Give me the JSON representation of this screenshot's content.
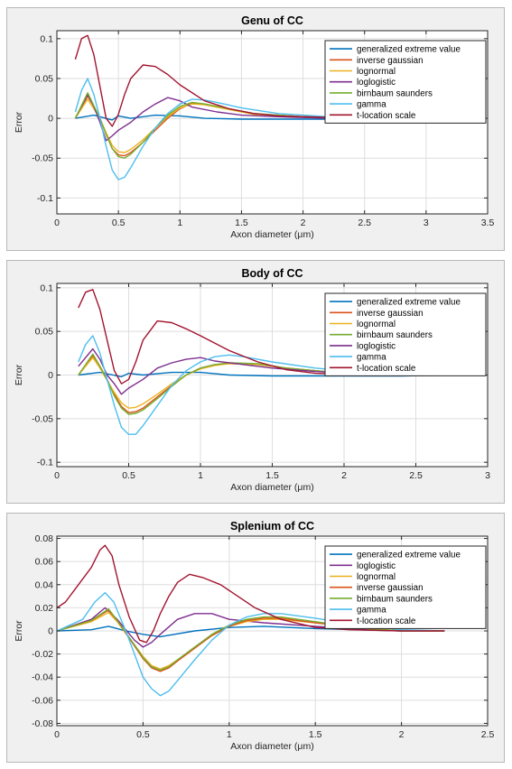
{
  "colors": {
    "generalized extreme value": "#0072BD",
    "inverse gaussian": "#D95319",
    "lognormal": "#EDB120",
    "loglogistic": "#7E2F8E",
    "birnbaum saunders": "#77AC30",
    "gamma": "#4DBEEE",
    "t-location scale": "#A2142F"
  },
  "chart_data": [
    {
      "type": "line",
      "title": "Genu of CC",
      "xlabel": "Axon diameter (μm)",
      "ylabel": "Error",
      "xlim": [
        0,
        3.5
      ],
      "ylim": [
        -0.12,
        0.11
      ],
      "xticks": [
        0,
        0.5,
        1,
        1.5,
        2,
        2.5,
        3,
        3.5
      ],
      "xtick_labels": [
        "0",
        "0.5",
        "1",
        "1.5",
        "2",
        "2.5",
        "3",
        "3.5"
      ],
      "yticks": [
        -0.1,
        -0.05,
        0,
        0.05,
        0.1
      ],
      "ytick_labels": [
        "-0.1",
        "-0.05",
        "0",
        "0.05",
        "0.1"
      ],
      "grid": true,
      "legend_position": "top-right",
      "series": [
        {
          "name": "generalized extreme value",
          "x": [
            0.15,
            0.3,
            0.45,
            0.5,
            0.6,
            0.8,
            1.0,
            1.2,
            1.5,
            2.0,
            2.5,
            3.1
          ],
          "y": [
            0.0,
            0.004,
            -0.002,
            0.003,
            0.0,
            0.004,
            0.003,
            0.0,
            -0.001,
            -0.001,
            -0.001,
            0.0
          ]
        },
        {
          "name": "inverse gaussian",
          "x": [
            0.15,
            0.25,
            0.3,
            0.35,
            0.4,
            0.45,
            0.5,
            0.55,
            0.6,
            0.7,
            0.8,
            0.9,
            1.0,
            1.1,
            1.2,
            1.4,
            1.6,
            2.0,
            2.5,
            3.1
          ],
          "y": [
            0.0,
            0.028,
            0.015,
            0.0,
            -0.02,
            -0.038,
            -0.046,
            -0.047,
            -0.043,
            -0.03,
            -0.015,
            0.0,
            0.012,
            0.019,
            0.018,
            0.012,
            0.006,
            0.002,
            0.0,
            0.0
          ]
        },
        {
          "name": "lognormal",
          "x": [
            0.15,
            0.25,
            0.3,
            0.35,
            0.4,
            0.45,
            0.5,
            0.55,
            0.6,
            0.7,
            0.8,
            0.9,
            1.0,
            1.1,
            1.2,
            1.4,
            1.6,
            2.0,
            2.5,
            3.1
          ],
          "y": [
            0.0,
            0.024,
            0.012,
            0.0,
            -0.018,
            -0.034,
            -0.042,
            -0.043,
            -0.039,
            -0.027,
            -0.012,
            0.002,
            0.013,
            0.018,
            0.017,
            0.011,
            0.005,
            0.002,
            0.0,
            0.0
          ]
        },
        {
          "name": "loglogistic",
          "x": [
            0.15,
            0.25,
            0.3,
            0.35,
            0.4,
            0.45,
            0.5,
            0.6,
            0.7,
            0.8,
            0.9,
            1.0,
            1.1,
            1.3,
            1.5,
            1.8,
            2.2,
            2.6,
            3.1
          ],
          "y": [
            0.0,
            0.03,
            0.015,
            -0.005,
            -0.028,
            -0.022,
            -0.015,
            -0.005,
            0.008,
            0.018,
            0.026,
            0.022,
            0.014,
            0.008,
            0.004,
            0.002,
            0.0,
            0.0,
            0.0
          ]
        },
        {
          "name": "birnbaum saunders",
          "x": [
            0.15,
            0.25,
            0.3,
            0.35,
            0.4,
            0.45,
            0.5,
            0.55,
            0.6,
            0.7,
            0.8,
            0.9,
            1.0,
            1.1,
            1.2,
            1.4,
            1.6,
            2.0,
            2.5,
            3.1
          ],
          "y": [
            0.0,
            0.032,
            0.016,
            0.0,
            -0.02,
            -0.038,
            -0.048,
            -0.05,
            -0.045,
            -0.03,
            -0.012,
            0.004,
            0.015,
            0.02,
            0.018,
            0.012,
            0.006,
            0.002,
            0.0,
            0.0
          ]
        },
        {
          "name": "gamma",
          "x": [
            0.15,
            0.2,
            0.25,
            0.3,
            0.35,
            0.4,
            0.45,
            0.5,
            0.55,
            0.6,
            0.7,
            0.8,
            0.9,
            1.0,
            1.1,
            1.2,
            1.3,
            1.5,
            1.8,
            2.2,
            2.6,
            3.1
          ],
          "y": [
            0.008,
            0.035,
            0.05,
            0.03,
            0.0,
            -0.035,
            -0.065,
            -0.077,
            -0.074,
            -0.062,
            -0.035,
            -0.012,
            0.006,
            0.018,
            0.024,
            0.023,
            0.02,
            0.013,
            0.006,
            0.002,
            0.0,
            0.0
          ]
        },
        {
          "name": "t-location scale",
          "x": [
            0.15,
            0.2,
            0.25,
            0.3,
            0.35,
            0.4,
            0.45,
            0.5,
            0.55,
            0.6,
            0.7,
            0.8,
            0.9,
            1.0,
            1.2,
            1.4,
            1.6,
            1.8,
            2.0,
            2.5,
            3.1
          ],
          "y": [
            0.074,
            0.1,
            0.104,
            0.08,
            0.04,
            0.0,
            -0.01,
            0.005,
            0.03,
            0.05,
            0.067,
            0.065,
            0.055,
            0.042,
            0.022,
            0.012,
            0.006,
            0.003,
            0.002,
            0.0,
            0.0
          ]
        }
      ]
    },
    {
      "type": "line",
      "title": "Body of CC",
      "xlabel": "Axon diameter (μm)",
      "ylabel": "Error",
      "xlim": [
        0,
        3
      ],
      "ylim": [
        -0.105,
        0.105
      ],
      "xticks": [
        0,
        0.5,
        1,
        1.5,
        2,
        2.5,
        3
      ],
      "xtick_labels": [
        "0",
        "0.5",
        "1",
        "1.5",
        "2",
        "2.5",
        "3"
      ],
      "yticks": [
        -0.1,
        -0.05,
        0,
        0.05,
        0.1
      ],
      "ytick_labels": [
        "-0.1",
        "-0.05",
        "0",
        "0.05",
        "0.1"
      ],
      "grid": true,
      "legend_position": "top-right",
      "series": [
        {
          "name": "generalized extreme value",
          "x": [
            0.15,
            0.3,
            0.45,
            0.5,
            0.6,
            0.8,
            1.0,
            1.2,
            1.5,
            2.0,
            2.4,
            2.75
          ],
          "y": [
            0.0,
            0.003,
            -0.002,
            0.002,
            0.0,
            0.003,
            0.003,
            0.0,
            -0.001,
            -0.001,
            -0.001,
            0.0
          ]
        },
        {
          "name": "inverse gaussian",
          "x": [
            0.15,
            0.25,
            0.3,
            0.35,
            0.4,
            0.45,
            0.5,
            0.55,
            0.6,
            0.7,
            0.8,
            0.9,
            1.0,
            1.1,
            1.2,
            1.4,
            1.6,
            2.0,
            2.4,
            2.75
          ],
          "y": [
            0.0,
            0.022,
            0.01,
            -0.005,
            -0.022,
            -0.036,
            -0.043,
            -0.042,
            -0.038,
            -0.025,
            -0.012,
            0.0,
            0.008,
            0.012,
            0.013,
            0.012,
            0.008,
            0.002,
            0.0,
            0.0
          ]
        },
        {
          "name": "lognormal",
          "x": [
            0.15,
            0.25,
            0.3,
            0.35,
            0.4,
            0.45,
            0.5,
            0.55,
            0.6,
            0.7,
            0.8,
            0.9,
            1.0,
            1.1,
            1.2,
            1.4,
            1.6,
            2.0,
            2.4,
            2.75
          ],
          "y": [
            0.0,
            0.02,
            0.008,
            -0.006,
            -0.02,
            -0.032,
            -0.038,
            -0.037,
            -0.033,
            -0.022,
            -0.01,
            0.0,
            0.007,
            0.011,
            0.013,
            0.012,
            0.008,
            0.002,
            0.0,
            0.0
          ]
        },
        {
          "name": "birnbaum saunders",
          "x": [
            0.15,
            0.25,
            0.3,
            0.35,
            0.4,
            0.45,
            0.5,
            0.55,
            0.6,
            0.7,
            0.8,
            0.9,
            1.0,
            1.1,
            1.2,
            1.4,
            1.6,
            2.0,
            2.4,
            2.75
          ],
          "y": [
            0.0,
            0.024,
            0.01,
            -0.006,
            -0.024,
            -0.038,
            -0.045,
            -0.044,
            -0.04,
            -0.027,
            -0.013,
            0.0,
            0.008,
            0.012,
            0.014,
            0.013,
            0.008,
            0.002,
            0.0,
            0.0
          ]
        },
        {
          "name": "loglogistic",
          "x": [
            0.15,
            0.25,
            0.3,
            0.35,
            0.4,
            0.45,
            0.5,
            0.6,
            0.7,
            0.8,
            0.9,
            1.0,
            1.1,
            1.3,
            1.5,
            1.8,
            2.2,
            2.5,
            2.75
          ],
          "y": [
            0.01,
            0.03,
            0.018,
            0.0,
            -0.01,
            -0.022,
            -0.015,
            -0.005,
            0.008,
            0.014,
            0.018,
            0.02,
            0.016,
            0.012,
            0.008,
            0.004,
            0.001,
            0.0,
            0.0
          ]
        },
        {
          "name": "gamma",
          "x": [
            0.15,
            0.2,
            0.25,
            0.3,
            0.35,
            0.4,
            0.45,
            0.5,
            0.55,
            0.6,
            0.7,
            0.8,
            0.9,
            1.0,
            1.1,
            1.2,
            1.3,
            1.5,
            1.8,
            2.2,
            2.5,
            2.75
          ],
          "y": [
            0.015,
            0.035,
            0.045,
            0.025,
            -0.005,
            -0.035,
            -0.06,
            -0.068,
            -0.068,
            -0.058,
            -0.035,
            -0.012,
            0.005,
            0.015,
            0.021,
            0.023,
            0.021,
            0.015,
            0.008,
            0.002,
            0.0,
            0.0
          ]
        },
        {
          "name": "t-location scale",
          "x": [
            0.15,
            0.2,
            0.25,
            0.3,
            0.35,
            0.4,
            0.45,
            0.5,
            0.55,
            0.6,
            0.7,
            0.8,
            0.9,
            1.0,
            1.2,
            1.4,
            1.6,
            1.8,
            2.0,
            2.4,
            2.75
          ],
          "y": [
            0.077,
            0.095,
            0.098,
            0.075,
            0.04,
            0.005,
            -0.01,
            -0.005,
            0.015,
            0.04,
            0.062,
            0.06,
            0.053,
            0.045,
            0.028,
            0.015,
            0.006,
            0.002,
            0.001,
            0.0,
            0.0
          ]
        }
      ]
    },
    {
      "type": "line",
      "title": "Splenium of CC",
      "xlabel": "Axon diameter (μm)",
      "ylabel": "Error",
      "xlim": [
        0,
        2.5
      ],
      "ylim": [
        -0.082,
        0.082
      ],
      "xticks": [
        0,
        0.5,
        1,
        1.5,
        2,
        2.5
      ],
      "xtick_labels": [
        "0",
        "0.5",
        "1",
        "1.5",
        "2",
        "2.5"
      ],
      "yticks": [
        -0.08,
        -0.06,
        -0.04,
        -0.02,
        0,
        0.02,
        0.04,
        0.06,
        0.08
      ],
      "ytick_labels": [
        "-0.08",
        "-0.06",
        "-0.04",
        "-0.02",
        "0",
        "0.02",
        "0.04",
        "0.06",
        "0.08"
      ],
      "grid": true,
      "legend_position": "top-right",
      "series": [
        {
          "name": "generalized extreme value",
          "x": [
            0,
            0.2,
            0.3,
            0.4,
            0.5,
            0.6,
            0.8,
            1.0,
            1.2,
            1.5,
            2.0,
            2.25
          ],
          "y": [
            0.0,
            0.001,
            0.004,
            0.0,
            -0.003,
            -0.005,
            0.0,
            0.003,
            0.004,
            0.002,
            0.0,
            0.0
          ]
        },
        {
          "name": "loglogistic",
          "x": [
            0,
            0.2,
            0.28,
            0.35,
            0.45,
            0.5,
            0.55,
            0.6,
            0.7,
            0.8,
            0.9,
            1.0,
            1.2,
            1.5,
            1.8,
            2.0,
            2.25
          ],
          "y": [
            0.0,
            0.01,
            0.02,
            0.01,
            -0.008,
            -0.014,
            -0.01,
            -0.003,
            0.01,
            0.015,
            0.015,
            0.01,
            0.007,
            0.004,
            0.001,
            0.0,
            0.0
          ]
        },
        {
          "name": "lognormal",
          "x": [
            0,
            0.2,
            0.3,
            0.35,
            0.45,
            0.5,
            0.55,
            0.6,
            0.65,
            0.7,
            0.8,
            0.9,
            1.0,
            1.1,
            1.2,
            1.3,
            1.5,
            1.8,
            2.0,
            2.25
          ],
          "y": [
            0.0,
            0.008,
            0.016,
            0.008,
            -0.012,
            -0.022,
            -0.03,
            -0.033,
            -0.03,
            -0.025,
            -0.014,
            -0.004,
            0.004,
            0.008,
            0.01,
            0.01,
            0.007,
            0.002,
            0.0,
            0.0
          ]
        },
        {
          "name": "inverse gaussian",
          "x": [
            0,
            0.2,
            0.3,
            0.35,
            0.45,
            0.5,
            0.55,
            0.6,
            0.65,
            0.7,
            0.8,
            0.9,
            1.0,
            1.1,
            1.2,
            1.3,
            1.5,
            1.8,
            2.0,
            2.25
          ],
          "y": [
            0.0,
            0.009,
            0.018,
            0.009,
            -0.013,
            -0.024,
            -0.032,
            -0.035,
            -0.032,
            -0.026,
            -0.015,
            -0.004,
            0.004,
            0.009,
            0.011,
            0.011,
            0.007,
            0.002,
            0.0,
            0.0
          ]
        },
        {
          "name": "birnbaum saunders",
          "x": [
            0,
            0.2,
            0.3,
            0.35,
            0.45,
            0.5,
            0.55,
            0.6,
            0.65,
            0.7,
            0.8,
            0.9,
            1.0,
            1.1,
            1.2,
            1.3,
            1.5,
            1.8,
            2.0,
            2.25
          ],
          "y": [
            0.0,
            0.009,
            0.019,
            0.009,
            -0.012,
            -0.023,
            -0.031,
            -0.034,
            -0.031,
            -0.025,
            -0.014,
            -0.003,
            0.005,
            0.01,
            0.012,
            0.012,
            0.008,
            0.002,
            0.0,
            0.0
          ]
        },
        {
          "name": "gamma",
          "x": [
            0,
            0.15,
            0.22,
            0.28,
            0.33,
            0.4,
            0.45,
            0.5,
            0.55,
            0.6,
            0.65,
            0.7,
            0.8,
            0.9,
            1.0,
            1.1,
            1.2,
            1.3,
            1.5,
            1.8,
            2.0,
            2.25
          ],
          "y": [
            0.0,
            0.01,
            0.025,
            0.033,
            0.025,
            0.0,
            -0.02,
            -0.04,
            -0.05,
            -0.056,
            -0.052,
            -0.043,
            -0.025,
            -0.008,
            0.005,
            0.012,
            0.015,
            0.015,
            0.011,
            0.004,
            0.001,
            0.0
          ]
        },
        {
          "name": "t-location scale",
          "x": [
            0,
            0.05,
            0.1,
            0.2,
            0.25,
            0.28,
            0.32,
            0.36,
            0.42,
            0.48,
            0.52,
            0.56,
            0.6,
            0.65,
            0.7,
            0.77,
            0.85,
            0.95,
            1.05,
            1.15,
            1.3,
            1.5,
            1.7,
            2.0,
            2.25
          ],
          "y": [
            0.02,
            0.025,
            0.035,
            0.055,
            0.07,
            0.074,
            0.065,
            0.04,
            0.012,
            -0.008,
            -0.01,
            0.0,
            0.015,
            0.03,
            0.042,
            0.049,
            0.046,
            0.04,
            0.03,
            0.02,
            0.01,
            0.003,
            0.001,
            0.0,
            0.0
          ]
        }
      ]
    }
  ]
}
